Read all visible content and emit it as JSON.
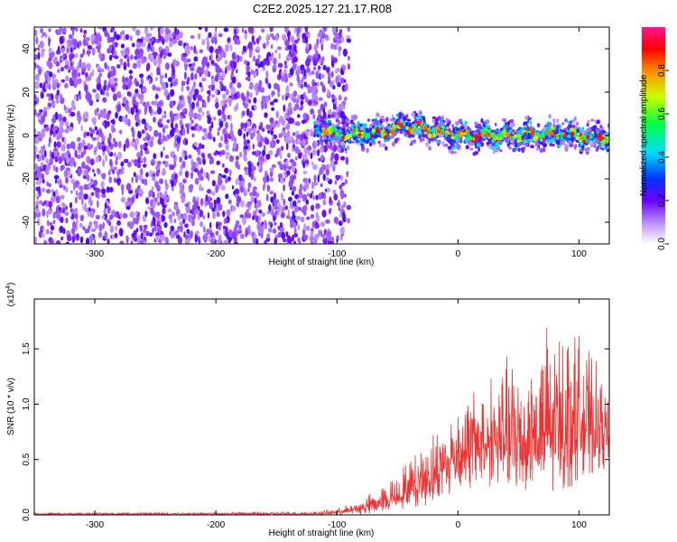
{
  "figure_title": "C2E2.2025.127.21.17.R08",
  "chart_data": [
    {
      "type": "heatmap",
      "title": "C2E2.2025.127.21.17.R08",
      "xlabel": "Height of straight line (km)",
      "ylabel": "Frequency (Hz)",
      "xlim": [
        -350,
        125
      ],
      "ylim": [
        -50,
        50
      ],
      "xticks": [
        -300,
        -200,
        -100,
        0,
        100
      ],
      "yticks": [
        -40,
        -20,
        0,
        20,
        40
      ],
      "xtick_labels": [
        "-300",
        "-200",
        "-100",
        "0",
        "100"
      ],
      "ytick_labels": [
        "-40",
        "-20",
        "0",
        "20",
        "40"
      ],
      "description_regions": [
        {
          "x_range": [
            -350,
            -100
          ],
          "frequency_range": [
            -50,
            50
          ],
          "amplitude_range": [
            0.0,
            0.25
          ]
        },
        {
          "x_range": [
            -120,
            125
          ],
          "frequency_range": [
            -8,
            8
          ],
          "amplitude_range": [
            0.2,
            1.0
          ]
        }
      ],
      "ridge": {
        "x": [
          -115,
          -100,
          -80,
          -60,
          -40,
          -20,
          0,
          20,
          40,
          60,
          80,
          100,
          125
        ],
        "frequency": [
          4,
          0,
          1,
          2,
          4,
          2,
          0,
          0,
          0,
          0,
          1,
          0,
          -1
        ]
      },
      "colorbar": {
        "label": "Normalized spectral amplitude",
        "range": [
          0.0,
          1.0
        ],
        "ticks": [
          0.0,
          0.2,
          0.4,
          0.6,
          0.8
        ],
        "tick_labels": [
          "0.0",
          "0.2",
          "0.4",
          "0.6",
          "0.8"
        ]
      }
    },
    {
      "type": "line",
      "xlabel": "Height of straight line (km)",
      "ylabel": "SNR (10 * v/v)",
      "scale_label": "(x10",
      "scale_exponent": "4",
      "scale_close": ")",
      "xlim": [
        -350,
        125
      ],
      "ylim": [
        0.0,
        1.95
      ],
      "xticks": [
        -300,
        -200,
        -100,
        0,
        100
      ],
      "yticks": [
        0.0,
        0.5,
        1.0,
        1.5
      ],
      "xtick_labels": [
        "-300",
        "-200",
        "-100",
        "0",
        "100"
      ],
      "ytick_labels": [
        "0.0",
        "0.5",
        "1.0",
        "1.5"
      ],
      "series": [
        {
          "name": "SNR",
          "color": "#ee3333",
          "envelope_x": [
            -350,
            -120,
            -100,
            -80,
            -60,
            -40,
            -20,
            0,
            20,
            40,
            60,
            80,
            100,
            125
          ],
          "envelope_max": [
            0.02,
            0.03,
            0.06,
            0.15,
            0.3,
            0.55,
            0.8,
            1.1,
            1.3,
            1.5,
            1.6,
            1.9,
            1.75,
            1.15
          ],
          "envelope_min": [
            0.0,
            0.0,
            0.0,
            0.0,
            0.02,
            0.05,
            0.1,
            0.2,
            0.25,
            0.2,
            0.15,
            0.1,
            0.3,
            0.4
          ]
        }
      ]
    }
  ]
}
